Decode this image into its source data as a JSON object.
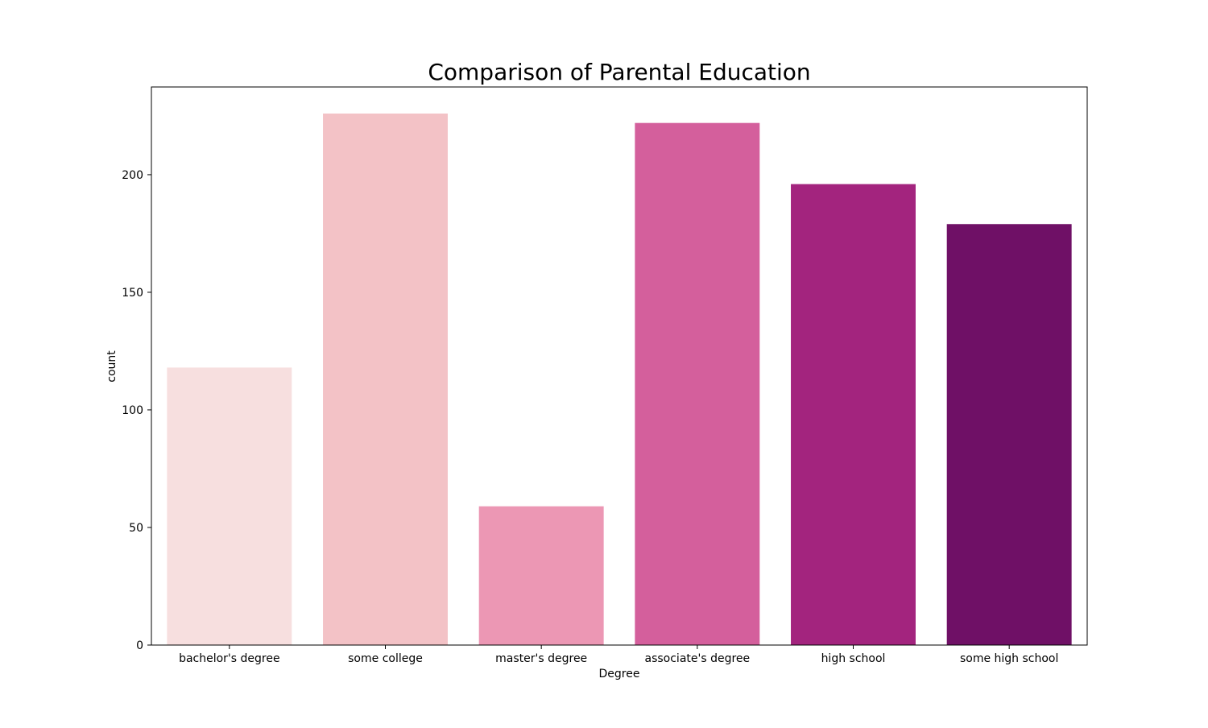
{
  "chart_data": {
    "type": "bar",
    "title": "Comparison of Parental Education",
    "xlabel": "Degree",
    "ylabel": "count",
    "categories": [
      "bachelor's degree",
      "some college",
      "master's degree",
      "associate's degree",
      "high school",
      "some high school"
    ],
    "values": [
      118,
      226,
      59,
      222,
      196,
      179
    ],
    "colors": [
      "#f7dfdf",
      "#f3c2c6",
      "#ec97b4",
      "#d45f9c",
      "#a3247e",
      "#6f1066"
    ],
    "yticks": [
      0,
      50,
      100,
      150,
      200
    ],
    "ylim": [
      0,
      237.3
    ],
    "grid": false,
    "legend": "none"
  }
}
